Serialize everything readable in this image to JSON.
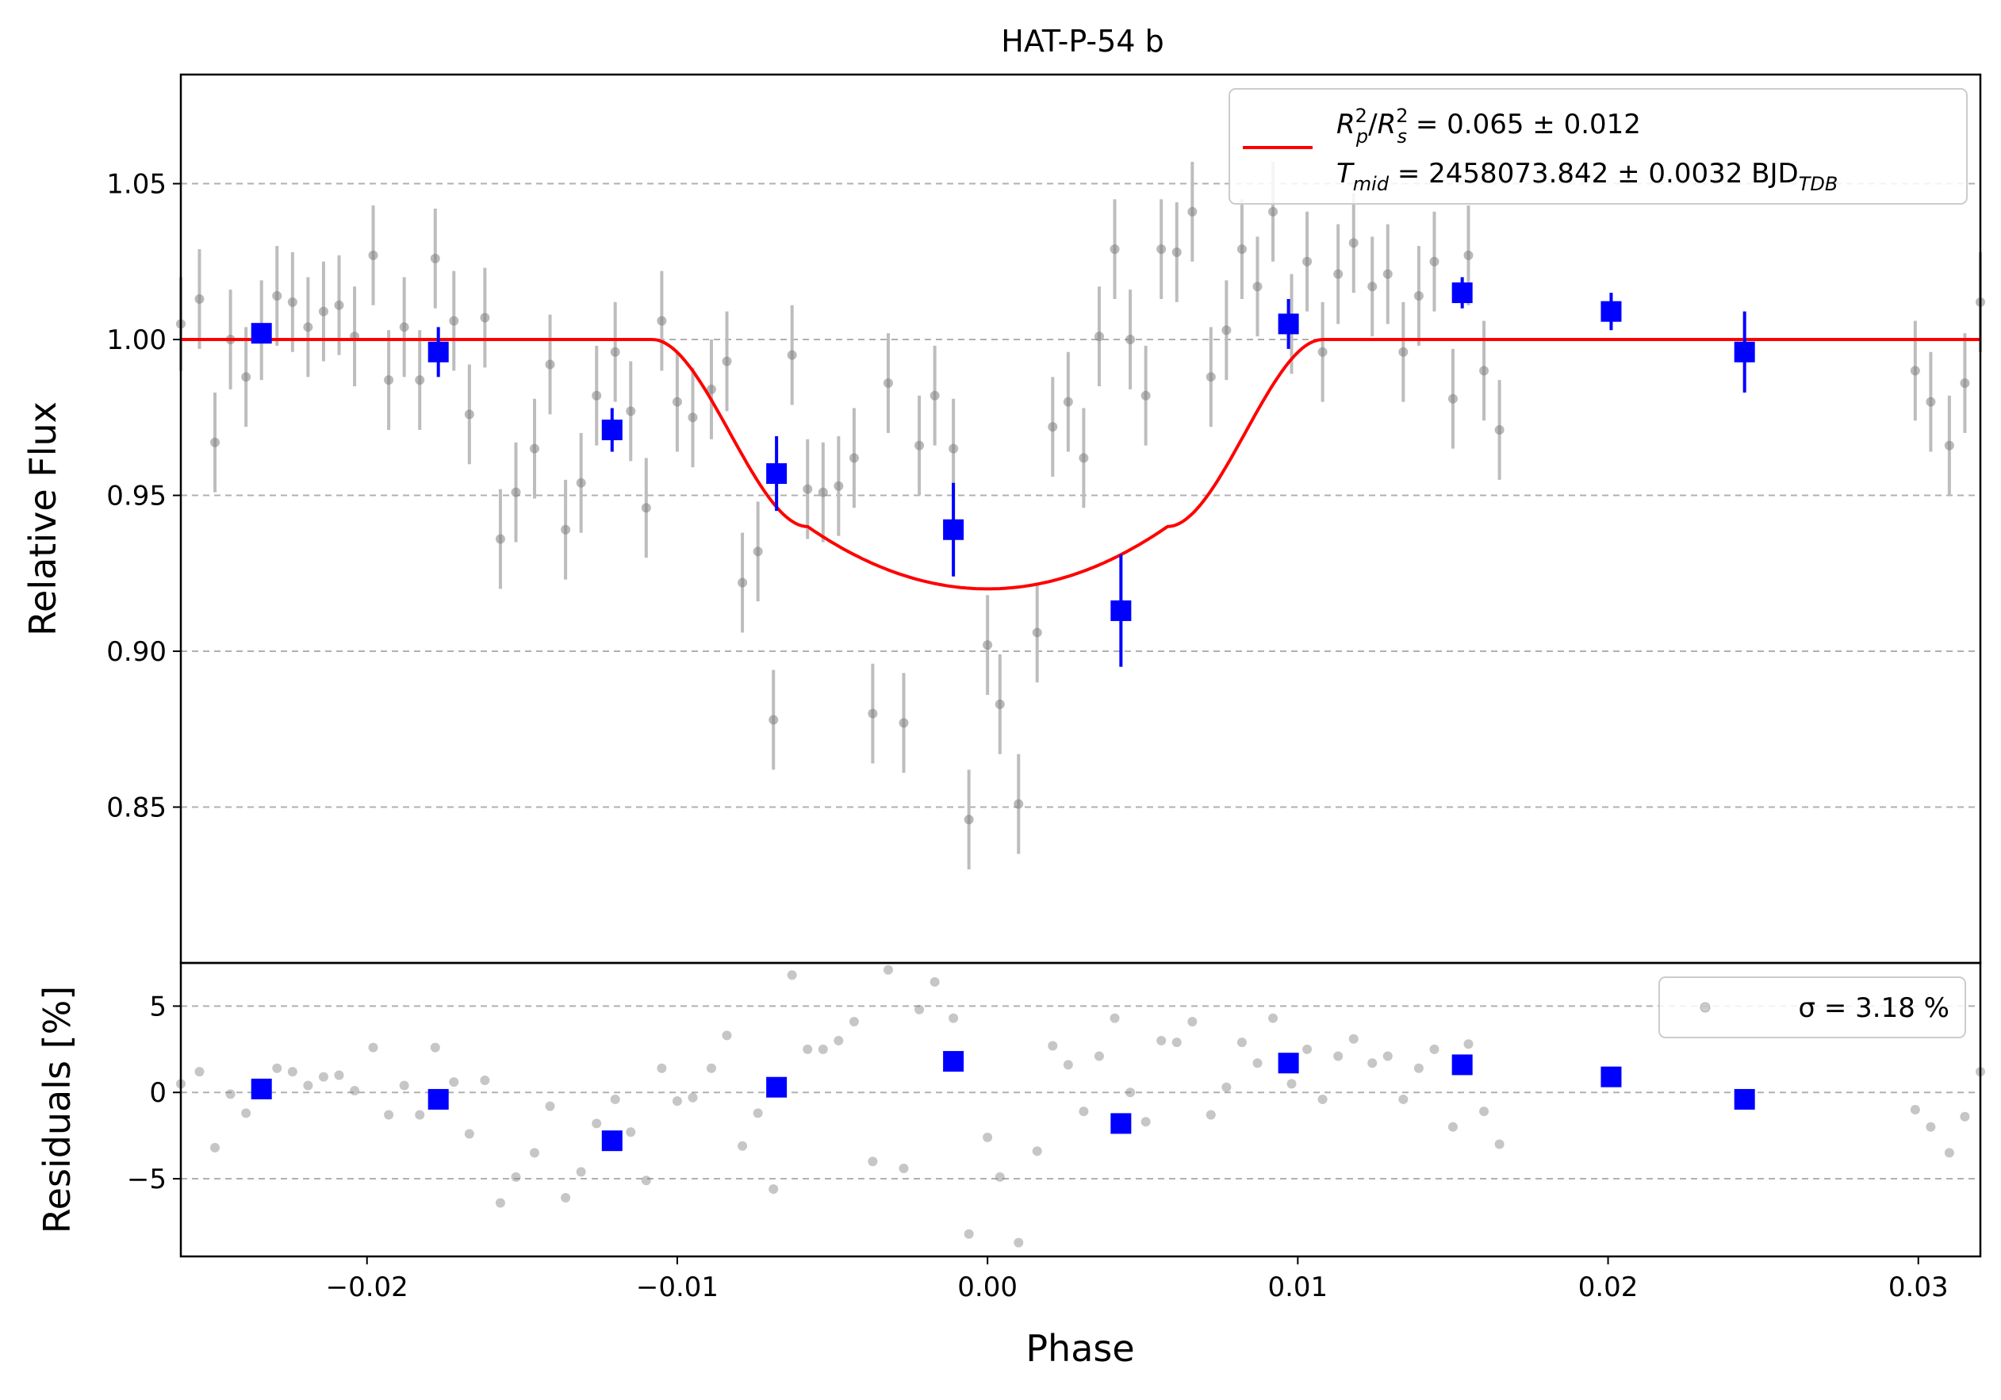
{
  "chart_data": [
    {
      "type": "scatter",
      "title": "HAT-P-54 b",
      "xlabel": "",
      "ylabel": "Relative Flux",
      "xlim": [
        -0.026,
        0.032
      ],
      "ylim": [
        0.8,
        1.085
      ],
      "yticks": [
        "0.85",
        "0.90",
        "0.95",
        "1.00",
        "1.05"
      ],
      "ytick_values": [
        0.85,
        0.9,
        0.95,
        1.0,
        1.05
      ],
      "grid": "horizontal-dashed",
      "legend_position": "top-right",
      "legend": {
        "line1_label": "R",
        "line1_value": " = 0.065 ± 0.012",
        "line2_label": "T",
        "line2_sub": "mid",
        "line2_value": " = 2458073.842 ± 0.0032 BJD",
        "line2_unit_sub": "TDB"
      },
      "colors": {
        "raw": "#808080",
        "binned": "#0000ff",
        "model": "#ff0000"
      },
      "raw": [
        [
          -0.026,
          1.005,
          0.03
        ],
        [
          -0.0254,
          1.013,
          0.032
        ],
        [
          -0.0249,
          0.967,
          0.032
        ],
        [
          -0.0244,
          1.0,
          0.032
        ],
        [
          -0.0239,
          0.988,
          0.032
        ],
        [
          -0.0234,
          1.003,
          0.032
        ],
        [
          -0.0229,
          1.014,
          0.032
        ],
        [
          -0.0224,
          1.012,
          0.032
        ],
        [
          -0.0219,
          1.004,
          0.032
        ],
        [
          -0.0214,
          1.009,
          0.032
        ],
        [
          -0.0209,
          1.011,
          0.032
        ],
        [
          -0.0204,
          1.001,
          0.032
        ],
        [
          -0.0198,
          1.027,
          0.032
        ],
        [
          -0.0193,
          0.987,
          0.032
        ],
        [
          -0.0188,
          1.004,
          0.032
        ],
        [
          -0.0183,
          0.987,
          0.032
        ],
        [
          -0.0178,
          1.026,
          0.032
        ],
        [
          -0.0172,
          1.006,
          0.032
        ],
        [
          -0.0167,
          0.976,
          0.032
        ],
        [
          -0.0162,
          1.007,
          0.032
        ],
        [
          -0.0157,
          0.936,
          0.032
        ],
        [
          -0.0152,
          0.951,
          0.032
        ],
        [
          -0.0146,
          0.965,
          0.032
        ],
        [
          -0.0141,
          0.992,
          0.032
        ],
        [
          -0.0136,
          0.939,
          0.032
        ],
        [
          -0.0131,
          0.954,
          0.032
        ],
        [
          -0.0126,
          0.982,
          0.032
        ],
        [
          -0.012,
          0.996,
          0.032
        ],
        [
          -0.0115,
          0.977,
          0.032
        ],
        [
          -0.011,
          0.946,
          0.032
        ],
        [
          -0.0105,
          1.006,
          0.032
        ],
        [
          -0.01,
          0.98,
          0.032
        ],
        [
          -0.0095,
          0.975,
          0.032
        ],
        [
          -0.0089,
          0.984,
          0.032
        ],
        [
          -0.0084,
          0.993,
          0.032
        ],
        [
          -0.0079,
          0.922,
          0.032
        ],
        [
          -0.0074,
          0.932,
          0.032
        ],
        [
          -0.0069,
          0.878,
          0.032
        ],
        [
          -0.0063,
          0.995,
          0.032
        ],
        [
          -0.0058,
          0.952,
          0.032
        ],
        [
          -0.0053,
          0.951,
          0.032
        ],
        [
          -0.0048,
          0.953,
          0.032
        ],
        [
          -0.0043,
          0.962,
          0.032
        ],
        [
          -0.0037,
          0.88,
          0.032
        ],
        [
          -0.0032,
          0.986,
          0.032
        ],
        [
          -0.0027,
          0.877,
          0.032
        ],
        [
          -0.0022,
          0.966,
          0.032
        ],
        [
          -0.0017,
          0.982,
          0.032
        ],
        [
          -0.0011,
          0.965,
          0.032
        ],
        [
          -0.0006,
          0.846,
          0.032
        ],
        [
          0.0,
          0.902,
          0.032
        ],
        [
          0.0004,
          0.883,
          0.032
        ],
        [
          0.001,
          0.851,
          0.032
        ],
        [
          0.0016,
          0.906,
          0.032
        ],
        [
          0.0021,
          0.972,
          0.032
        ],
        [
          0.0026,
          0.98,
          0.032
        ],
        [
          0.0031,
          0.962,
          0.032
        ],
        [
          0.0036,
          1.001,
          0.032
        ],
        [
          0.0041,
          1.029,
          0.032
        ],
        [
          0.0046,
          1.0,
          0.032
        ],
        [
          0.0051,
          0.982,
          0.032
        ],
        [
          0.0056,
          1.029,
          0.032
        ],
        [
          0.0061,
          1.028,
          0.032
        ],
        [
          0.0066,
          1.041,
          0.032
        ],
        [
          0.0072,
          0.988,
          0.032
        ],
        [
          0.0077,
          1.003,
          0.032
        ],
        [
          0.0082,
          1.029,
          0.032
        ],
        [
          0.0087,
          1.017,
          0.032
        ],
        [
          0.0092,
          1.041,
          0.032
        ],
        [
          0.0098,
          1.005,
          0.032
        ],
        [
          0.0103,
          1.025,
          0.032
        ],
        [
          0.0108,
          0.996,
          0.032
        ],
        [
          0.0113,
          1.021,
          0.032
        ],
        [
          0.0118,
          1.031,
          0.032
        ],
        [
          0.0124,
          1.017,
          0.032
        ],
        [
          0.0129,
          1.021,
          0.032
        ],
        [
          0.0134,
          0.996,
          0.032
        ],
        [
          0.0139,
          1.014,
          0.032
        ],
        [
          0.0144,
          1.025,
          0.032
        ],
        [
          0.015,
          0.981,
          0.032
        ],
        [
          0.0155,
          1.027,
          0.032
        ],
        [
          0.016,
          0.99,
          0.032
        ],
        [
          0.0165,
          0.971,
          0.032
        ],
        [
          0.0299,
          0.99,
          0.032
        ],
        [
          0.0304,
          0.98,
          0.032
        ],
        [
          0.031,
          0.966,
          0.032
        ],
        [
          0.0315,
          0.986,
          0.032
        ],
        [
          0.032,
          1.012,
          0.032
        ]
      ],
      "binned": [
        [
          -0.0234,
          1.002,
          0.003
        ],
        [
          -0.0177,
          0.996,
          0.008
        ],
        [
          -0.0121,
          0.971,
          0.007
        ],
        [
          -0.0068,
          0.957,
          0.012
        ],
        [
          -0.0011,
          0.939,
          0.015
        ],
        [
          0.0043,
          0.913,
          0.018
        ],
        [
          0.0097,
          1.005,
          0.008
        ],
        [
          0.0153,
          1.015,
          0.005
        ],
        [
          0.0201,
          1.009,
          0.006
        ],
        [
          0.0244,
          0.996,
          0.013
        ]
      ],
      "model": {
        "t0": 0.0,
        "half_total": 0.0108,
        "half_flat": 0.0058,
        "depth": 0.08,
        "baseline": 1.0
      }
    },
    {
      "type": "scatter",
      "title": "",
      "xlabel": "Phase",
      "ylabel": "Residuals [%]",
      "xlim": [
        -0.026,
        0.032
      ],
      "ylim": [
        -9.5,
        7.5
      ],
      "xticks": [
        "−0.02",
        "−0.01",
        "0.00",
        "0.01",
        "0.02",
        "0.03"
      ],
      "xtick_values": [
        -0.02,
        -0.01,
        0.0,
        0.01,
        0.02,
        0.03
      ],
      "yticks": [
        "−5",
        "0",
        "5"
      ],
      "ytick_values": [
        -5,
        0,
        5
      ],
      "grid": "horizontal-dashed",
      "legend_position": "top-right",
      "legend": {
        "label": "σ = 3.18 %"
      },
      "raw": [
        [
          -0.026,
          0.5
        ],
        [
          -0.0254,
          1.2
        ],
        [
          -0.0249,
          -3.2
        ],
        [
          -0.0244,
          -0.1
        ],
        [
          -0.0239,
          -1.2
        ],
        [
          -0.0234,
          0.2
        ],
        [
          -0.0229,
          1.4
        ],
        [
          -0.0224,
          1.2
        ],
        [
          -0.0219,
          0.4
        ],
        [
          -0.0214,
          0.9
        ],
        [
          -0.0209,
          1.0
        ],
        [
          -0.0204,
          0.1
        ],
        [
          -0.0198,
          2.6
        ],
        [
          -0.0193,
          -1.3
        ],
        [
          -0.0188,
          0.4
        ],
        [
          -0.0183,
          -1.3
        ],
        [
          -0.0178,
          2.6
        ],
        [
          -0.0172,
          0.6
        ],
        [
          -0.0167,
          -2.4
        ],
        [
          -0.0162,
          0.7
        ],
        [
          -0.0157,
          -6.4
        ],
        [
          -0.0152,
          -4.9
        ],
        [
          -0.0146,
          -3.5
        ],
        [
          -0.0141,
          -0.8
        ],
        [
          -0.0136,
          -6.1
        ],
        [
          -0.0131,
          -4.6
        ],
        [
          -0.0126,
          -1.8
        ],
        [
          -0.012,
          -0.4
        ],
        [
          -0.0115,
          -2.3
        ],
        [
          -0.011,
          -5.1
        ],
        [
          -0.0105,
          1.4
        ],
        [
          -0.01,
          -0.5
        ],
        [
          -0.0095,
          -0.3
        ],
        [
          -0.0089,
          1.4
        ],
        [
          -0.0084,
          3.3
        ],
        [
          -0.0079,
          -3.1
        ],
        [
          -0.0074,
          -1.2
        ],
        [
          -0.0069,
          -5.6
        ],
        [
          -0.0063,
          6.8
        ],
        [
          -0.0058,
          2.5
        ],
        [
          -0.0053,
          2.5
        ],
        [
          -0.0048,
          3.0
        ],
        [
          -0.0043,
          4.1
        ],
        [
          -0.0037,
          -4.0
        ],
        [
          -0.0032,
          7.1
        ],
        [
          -0.0027,
          -4.4
        ],
        [
          -0.0022,
          4.8
        ],
        [
          -0.0017,
          6.4
        ],
        [
          -0.0011,
          4.3
        ],
        [
          -0.0006,
          -8.2
        ],
        [
          0.0,
          -2.6
        ],
        [
          0.0004,
          -4.9
        ],
        [
          0.001,
          -8.7
        ],
        [
          0.0016,
          -3.4
        ],
        [
          0.0021,
          2.7
        ],
        [
          0.0026,
          1.6
        ],
        [
          0.0031,
          -1.1
        ],
        [
          0.0036,
          2.1
        ],
        [
          0.0041,
          4.3
        ],
        [
          0.0046,
          0.0
        ],
        [
          0.0051,
          -1.7
        ],
        [
          0.0056,
          3.0
        ],
        [
          0.0061,
          2.9
        ],
        [
          0.0066,
          4.1
        ],
        [
          0.0072,
          -1.3
        ],
        [
          0.0077,
          0.3
        ],
        [
          0.0082,
          2.9
        ],
        [
          0.0087,
          1.7
        ],
        [
          0.0092,
          4.3
        ],
        [
          0.0098,
          0.5
        ],
        [
          0.0103,
          2.5
        ],
        [
          0.0108,
          -0.4
        ],
        [
          0.0113,
          2.1
        ],
        [
          0.0118,
          3.1
        ],
        [
          0.0124,
          1.7
        ],
        [
          0.0129,
          2.1
        ],
        [
          0.0134,
          -0.4
        ],
        [
          0.0139,
          1.4
        ],
        [
          0.0144,
          2.5
        ],
        [
          0.015,
          -2.0
        ],
        [
          0.0155,
          2.8
        ],
        [
          0.016,
          -1.1
        ],
        [
          0.0165,
          -3.0
        ],
        [
          0.0299,
          -1.0
        ],
        [
          0.0304,
          -2.0
        ],
        [
          0.031,
          -3.5
        ],
        [
          0.0315,
          -1.4
        ],
        [
          0.032,
          1.2
        ]
      ],
      "binned": [
        [
          -0.0234,
          0.2
        ],
        [
          -0.0177,
          -0.4
        ],
        [
          -0.0121,
          -2.8
        ],
        [
          -0.0068,
          0.3
        ],
        [
          -0.0011,
          1.8
        ],
        [
          0.0043,
          -1.8
        ],
        [
          0.0097,
          1.7
        ],
        [
          0.0153,
          1.6
        ],
        [
          0.0201,
          0.9
        ],
        [
          0.0244,
          -0.4
        ]
      ]
    }
  ]
}
